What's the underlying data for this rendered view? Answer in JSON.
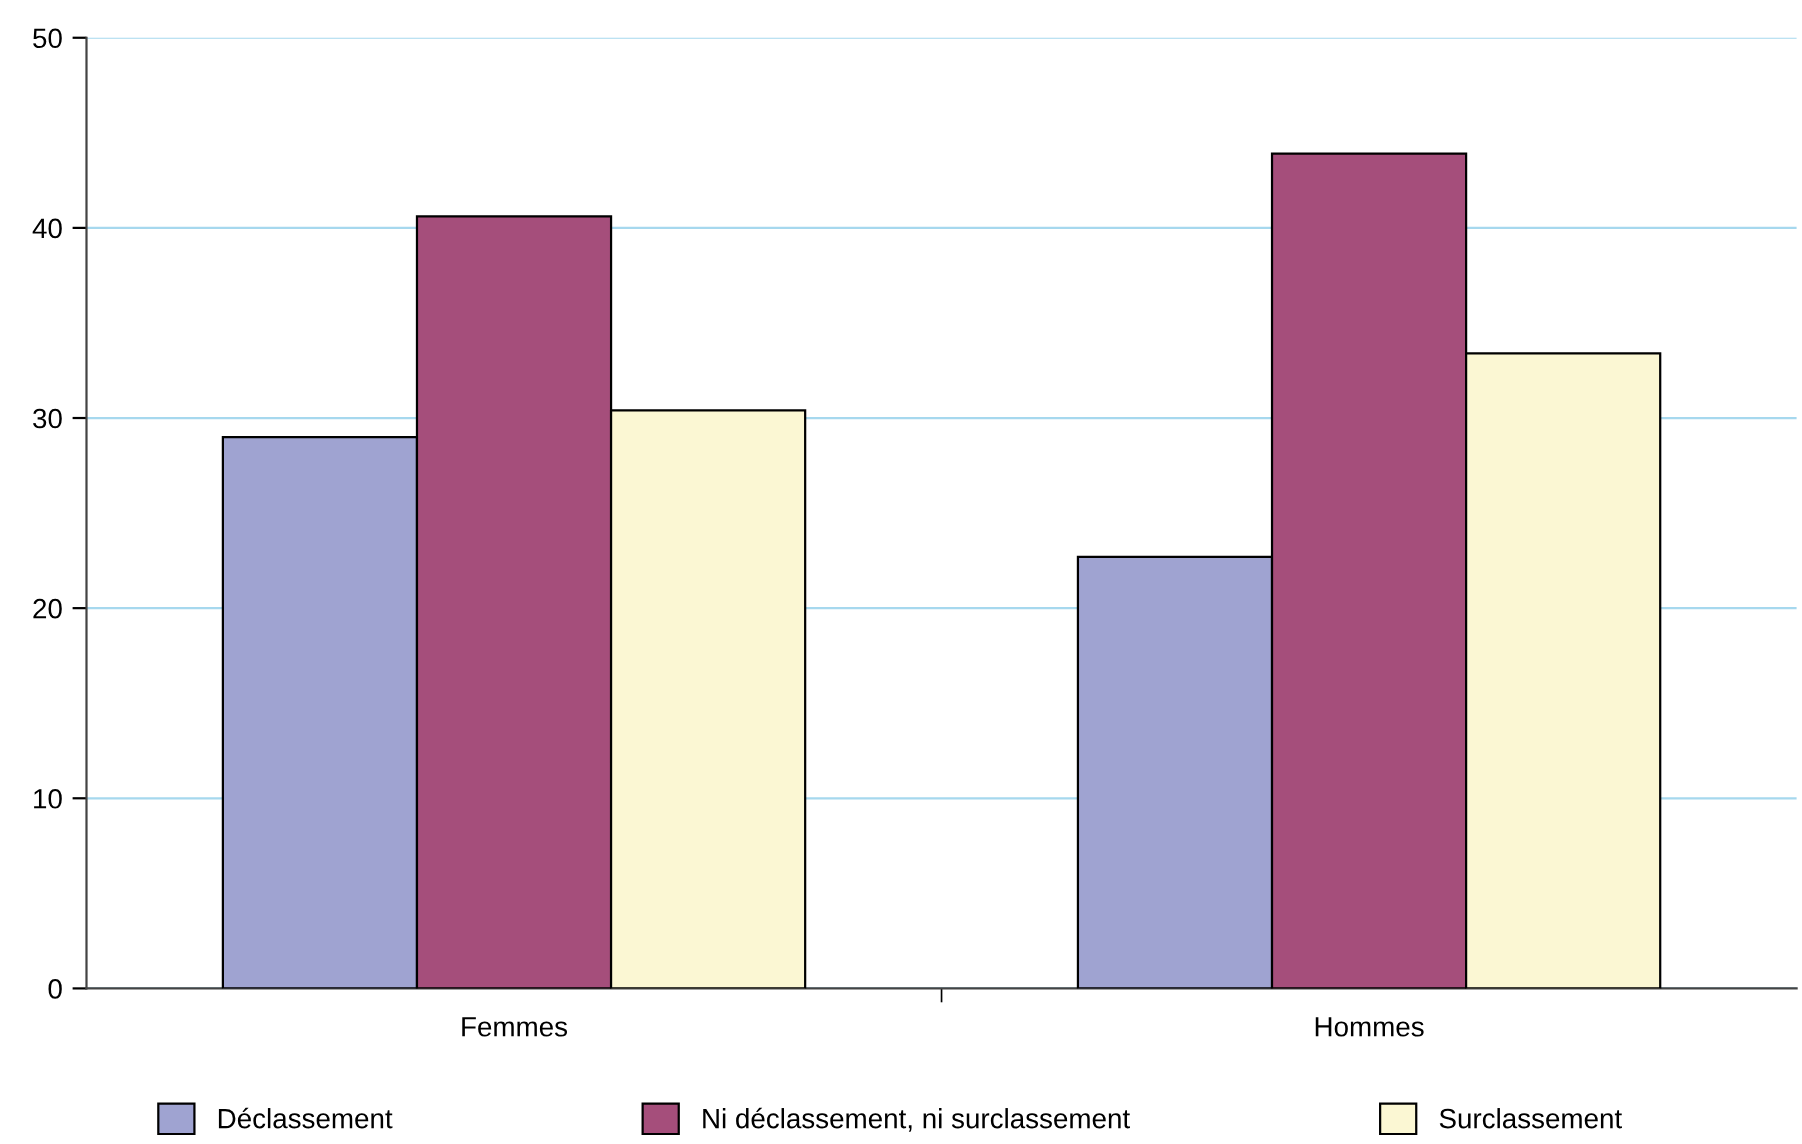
{
  "chart_data": {
    "type": "bar",
    "categories": [
      "Femmes",
      "Hommes"
    ],
    "series": [
      {
        "name": "Déclassement",
        "color": "#9fa3d1",
        "values": [
          29.0,
          22.7
        ]
      },
      {
        "name": "Ni déclassement, ni surclassement",
        "color": "#a54e7b",
        "values": [
          40.6,
          43.9
        ]
      },
      {
        "name": "Surclassement",
        "color": "#fbf7d3",
        "values": [
          30.4,
          33.4
        ]
      }
    ],
    "ylim": [
      0,
      50
    ],
    "yticks": [
      0,
      10,
      20,
      30,
      40,
      50
    ],
    "grid": "y",
    "legend": "bottom"
  }
}
